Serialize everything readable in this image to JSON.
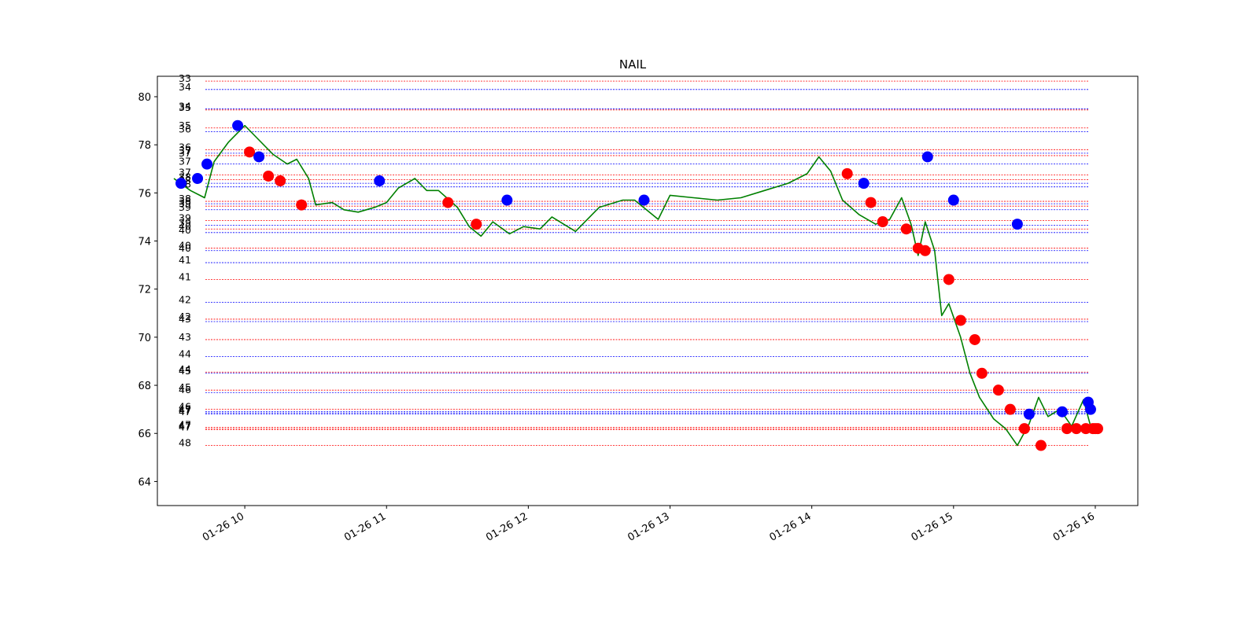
{
  "chart_data": {
    "type": "line",
    "title": "NAIL",
    "xlabel": "",
    "ylabel": "",
    "x_ticks": [
      "01-26 10",
      "01-26 11",
      "01-26 12",
      "01-26 13",
      "01-26 14",
      "01-26 15",
      "01-26 16"
    ],
    "y_ticks": [
      64,
      66,
      68,
      70,
      72,
      74,
      76,
      78,
      80
    ],
    "xlim": [
      "01-26 09:23",
      "01-26 16:18"
    ],
    "ylim": [
      63.0,
      80.85
    ],
    "grid": false,
    "colors": {
      "price": "#008000",
      "buy": "#0000ff",
      "sell": "#ff0000",
      "level_buy": "#0000ff",
      "level_sell": "#ff0000"
    },
    "price_series": {
      "name": "",
      "x": [
        "09:30",
        "09:37",
        "09:43",
        "09:47",
        "09:53",
        "10:00",
        "10:05",
        "10:12",
        "10:18",
        "10:22",
        "10:27",
        "10:30",
        "10:37",
        "10:42",
        "10:48",
        "10:55",
        "11:00",
        "11:05",
        "11:12",
        "11:17",
        "11:22",
        "11:30",
        "11:35",
        "11:40",
        "11:45",
        "11:52",
        "11:58",
        "12:05",
        "12:10",
        "12:20",
        "12:30",
        "12:40",
        "12:45",
        "12:55",
        "13:00",
        "13:10",
        "13:20",
        "13:30",
        "13:40",
        "13:50",
        "13:58",
        "14:03",
        "14:08",
        "14:13",
        "14:20",
        "14:27",
        "14:33",
        "14:38",
        "14:42",
        "14:45",
        "14:48",
        "14:52",
        "14:55",
        "14:58",
        "15:03",
        "15:07",
        "15:11",
        "15:17",
        "15:22",
        "15:27",
        "15:32",
        "15:36",
        "15:40",
        "15:45",
        "15:50",
        "15:55",
        "15:58"
      ],
      "y": [
        76.6,
        76.1,
        75.8,
        77.3,
        78.1,
        78.8,
        78.3,
        77.6,
        77.2,
        77.4,
        76.6,
        75.5,
        75.6,
        75.3,
        75.2,
        75.4,
        75.6,
        76.2,
        76.6,
        76.1,
        76.1,
        75.4,
        74.6,
        74.2,
        74.8,
        74.3,
        74.6,
        74.5,
        75.0,
        74.4,
        75.4,
        75.7,
        75.7,
        74.9,
        75.9,
        75.8,
        75.7,
        75.8,
        76.1,
        76.4,
        76.8,
        77.5,
        76.9,
        75.7,
        75.1,
        74.7,
        74.9,
        75.8,
        74.7,
        73.4,
        74.8,
        73.6,
        70.9,
        71.4,
        70.0,
        68.5,
        67.5,
        66.6,
        66.2,
        65.5,
        66.4,
        67.5,
        66.7,
        67.0,
        66.3,
        67.4,
        66.3
      ]
    },
    "buy_points": {
      "x": [
        "09:33",
        "09:40",
        "09:44",
        "09:57",
        "10:06",
        "10:57",
        "11:51",
        "12:49",
        "14:22",
        "14:49",
        "15:00",
        "15:27",
        "15:32",
        "15:46",
        "15:57",
        "15:58"
      ],
      "y": [
        76.4,
        76.6,
        77.2,
        78.8,
        77.5,
        76.5,
        75.7,
        75.7,
        76.4,
        77.5,
        75.7,
        74.7,
        66.8,
        66.9,
        67.3,
        67.0
      ]
    },
    "sell_points": {
      "x": [
        "10:02",
        "10:10",
        "10:15",
        "10:24",
        "11:26",
        "11:38",
        "14:15",
        "14:25",
        "14:30",
        "14:40",
        "14:45",
        "14:48",
        "14:58",
        "15:03",
        "15:09",
        "15:12",
        "15:19",
        "15:24",
        "15:30",
        "15:37",
        "15:48",
        "15:52",
        "15:56",
        "15:59",
        "16:00",
        "16:01"
      ],
      "y": [
        77.7,
        76.7,
        76.5,
        75.5,
        75.6,
        74.7,
        76.8,
        75.6,
        74.8,
        74.5,
        73.7,
        73.6,
        72.4,
        70.7,
        69.9,
        68.5,
        67.8,
        67.0,
        66.2,
        65.5,
        66.2,
        66.2,
        66.2,
        66.2,
        66.2,
        66.2
      ]
    },
    "levels": [
      {
        "label": "33",
        "y": 80.65,
        "color": "red"
      },
      {
        "label": "34",
        "y": 80.3,
        "color": "blue"
      },
      {
        "label": "34",
        "y": 79.5,
        "color": "blue"
      },
      {
        "label": "35",
        "y": 79.45,
        "color": "red"
      },
      {
        "label": "35",
        "y": 78.7,
        "color": "red"
      },
      {
        "label": "36",
        "y": 78.55,
        "color": "blue"
      },
      {
        "label": "36",
        "y": 77.8,
        "color": "red"
      },
      {
        "label": "37",
        "y": 77.65,
        "color": "blue"
      },
      {
        "label": "37",
        "y": 77.55,
        "color": "red"
      },
      {
        "label": "37",
        "y": 77.2,
        "color": "blue"
      },
      {
        "label": "37",
        "y": 76.75,
        "color": "red"
      },
      {
        "label": "38",
        "y": 76.55,
        "color": "red"
      },
      {
        "label": "38",
        "y": 76.4,
        "color": "blue"
      },
      {
        "label": "38",
        "y": 76.25,
        "color": "blue"
      },
      {
        "label": "38",
        "y": 75.65,
        "color": "red"
      },
      {
        "label": "38",
        "y": 75.55,
        "color": "blue"
      },
      {
        "label": "39",
        "y": 75.45,
        "color": "red"
      },
      {
        "label": "39",
        "y": 75.3,
        "color": "blue"
      },
      {
        "label": "39",
        "y": 74.85,
        "color": "red"
      },
      {
        "label": "39",
        "y": 74.65,
        "color": "blue"
      },
      {
        "label": "40",
        "y": 74.5,
        "color": "red"
      },
      {
        "label": "40",
        "y": 74.35,
        "color": "blue"
      },
      {
        "label": "40",
        "y": 73.7,
        "color": "red"
      },
      {
        "label": "40",
        "y": 73.6,
        "color": "blue"
      },
      {
        "label": "41",
        "y": 73.1,
        "color": "blue"
      },
      {
        "label": "41",
        "y": 72.4,
        "color": "red"
      },
      {
        "label": "42",
        "y": 71.45,
        "color": "blue"
      },
      {
        "label": "42",
        "y": 70.75,
        "color": "red"
      },
      {
        "label": "43",
        "y": 70.65,
        "color": "blue"
      },
      {
        "label": "43",
        "y": 69.9,
        "color": "red"
      },
      {
        "label": "44",
        "y": 69.2,
        "color": "blue"
      },
      {
        "label": "44",
        "y": 68.55,
        "color": "red"
      },
      {
        "label": "45",
        "y": 68.5,
        "color": "blue"
      },
      {
        "label": "45",
        "y": 67.8,
        "color": "red"
      },
      {
        "label": "46",
        "y": 67.7,
        "color": "blue"
      },
      {
        "label": "46",
        "y": 67.0,
        "color": "red"
      },
      {
        "label": "47",
        "y": 66.9,
        "color": "blue"
      },
      {
        "label": "47",
        "y": 66.85,
        "color": "blue"
      },
      {
        "label": "47",
        "y": 66.8,
        "color": "blue"
      },
      {
        "label": "47",
        "y": 66.25,
        "color": "red"
      },
      {
        "label": "47",
        "y": 66.2,
        "color": "red"
      },
      {
        "label": "47",
        "y": 66.15,
        "color": "red"
      },
      {
        "label": "48",
        "y": 65.5,
        "color": "red"
      }
    ]
  }
}
